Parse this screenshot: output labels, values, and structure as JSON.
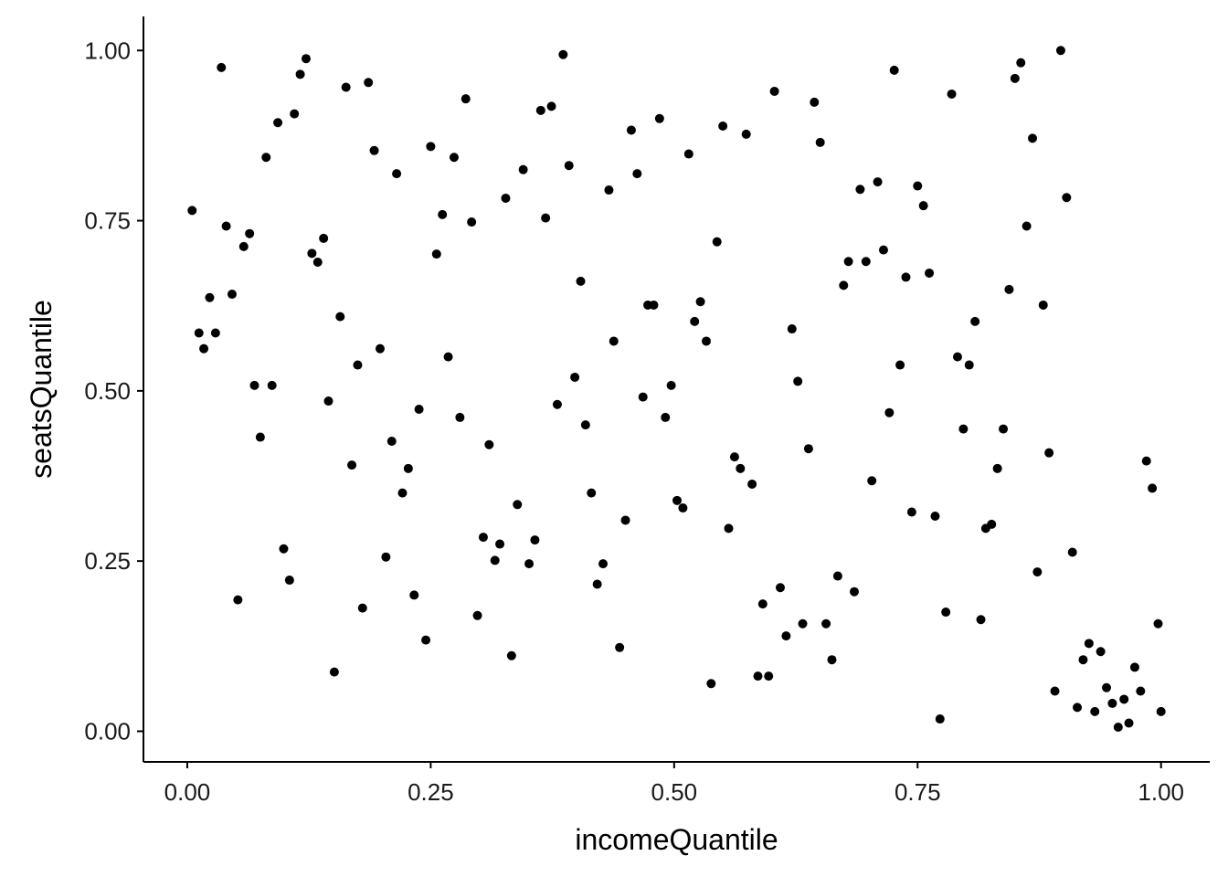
{
  "chart_data": {
    "type": "scatter",
    "title": "",
    "xlabel": "incomeQuantile",
    "ylabel": "seatsQuantile",
    "xlim": [
      -0.045,
      1.05
    ],
    "ylim": [
      -0.045,
      1.05
    ],
    "x_ticks": [
      0,
      0.25,
      0.5,
      0.75,
      1
    ],
    "x_tick_labels": [
      "0.00",
      "0.25",
      "0.50",
      "0.75",
      "1.00"
    ],
    "y_ticks": [
      0,
      0.25,
      0.5,
      0.75,
      1
    ],
    "y_tick_labels": [
      "0.00",
      "0.25",
      "0.50",
      "0.75",
      "1.00"
    ],
    "grid": false,
    "legend": "none",
    "point_color": "#000000",
    "points": [
      [
        0.005,
        0.765
      ],
      [
        0.012,
        0.585
      ],
      [
        0.017,
        0.562
      ],
      [
        0.023,
        0.637
      ],
      [
        0.029,
        0.585
      ],
      [
        0.035,
        0.975
      ],
      [
        0.04,
        0.742
      ],
      [
        0.046,
        0.642
      ],
      [
        0.052,
        0.193
      ],
      [
        0.058,
        0.712
      ],
      [
        0.064,
        0.731
      ],
      [
        0.069,
        0.508
      ],
      [
        0.075,
        0.432
      ],
      [
        0.081,
        0.843
      ],
      [
        0.087,
        0.508
      ],
      [
        0.093,
        0.894
      ],
      [
        0.099,
        0.268
      ],
      [
        0.105,
        0.222
      ],
      [
        0.11,
        0.907
      ],
      [
        0.116,
        0.965
      ],
      [
        0.122,
        0.988
      ],
      [
        0.128,
        0.702
      ],
      [
        0.134,
        0.689
      ],
      [
        0.14,
        0.724
      ],
      [
        0.145,
        0.485
      ],
      [
        0.151,
        0.087
      ],
      [
        0.157,
        0.609
      ],
      [
        0.163,
        0.946
      ],
      [
        0.169,
        0.391
      ],
      [
        0.175,
        0.538
      ],
      [
        0.18,
        0.181
      ],
      [
        0.186,
        0.953
      ],
      [
        0.192,
        0.853
      ],
      [
        0.198,
        0.562
      ],
      [
        0.204,
        0.256
      ],
      [
        0.21,
        0.426
      ],
      [
        0.215,
        0.819
      ],
      [
        0.221,
        0.35
      ],
      [
        0.227,
        0.386
      ],
      [
        0.233,
        0.2
      ],
      [
        0.238,
        0.473
      ],
      [
        0.245,
        0.134
      ],
      [
        0.25,
        0.859
      ],
      [
        0.256,
        0.701
      ],
      [
        0.262,
        0.759
      ],
      [
        0.268,
        0.55
      ],
      [
        0.274,
        0.843
      ],
      [
        0.28,
        0.461
      ],
      [
        0.286,
        0.929
      ],
      [
        0.292,
        0.748
      ],
      [
        0.298,
        0.17
      ],
      [
        0.304,
        0.285
      ],
      [
        0.31,
        0.421
      ],
      [
        0.316,
        0.251
      ],
      [
        0.321,
        0.275
      ],
      [
        0.327,
        0.783
      ],
      [
        0.333,
        0.111
      ],
      [
        0.339,
        0.333
      ],
      [
        0.345,
        0.825
      ],
      [
        0.351,
        0.246
      ],
      [
        0.357,
        0.281
      ],
      [
        0.363,
        0.912
      ],
      [
        0.368,
        0.754
      ],
      [
        0.374,
        0.918
      ],
      [
        0.38,
        0.48
      ],
      [
        0.386,
        0.994
      ],
      [
        0.392,
        0.831
      ],
      [
        0.398,
        0.52
      ],
      [
        0.404,
        0.661
      ],
      [
        0.409,
        0.45
      ],
      [
        0.415,
        0.35
      ],
      [
        0.421,
        0.216
      ],
      [
        0.427,
        0.246
      ],
      [
        0.433,
        0.795
      ],
      [
        0.438,
        0.573
      ],
      [
        0.444,
        0.123
      ],
      [
        0.45,
        0.31
      ],
      [
        0.456,
        0.883
      ],
      [
        0.462,
        0.819
      ],
      [
        0.468,
        0.491
      ],
      [
        0.473,
        0.626
      ],
      [
        0.479,
        0.626
      ],
      [
        0.485,
        0.9
      ],
      [
        0.491,
        0.461
      ],
      [
        0.497,
        0.508
      ],
      [
        0.503,
        0.339
      ],
      [
        0.509,
        0.328
      ],
      [
        0.515,
        0.848
      ],
      [
        0.521,
        0.602
      ],
      [
        0.527,
        0.631
      ],
      [
        0.533,
        0.573
      ],
      [
        0.538,
        0.07
      ],
      [
        0.544,
        0.719
      ],
      [
        0.55,
        0.889
      ],
      [
        0.556,
        0.298
      ],
      [
        0.562,
        0.403
      ],
      [
        0.568,
        0.386
      ],
      [
        0.574,
        0.877
      ],
      [
        0.58,
        0.363
      ],
      [
        0.586,
        0.081
      ],
      [
        0.591,
        0.187
      ],
      [
        0.597,
        0.081
      ],
      [
        0.603,
        0.94
      ],
      [
        0.609,
        0.211
      ],
      [
        0.615,
        0.14
      ],
      [
        0.621,
        0.591
      ],
      [
        0.627,
        0.514
      ],
      [
        0.632,
        0.158
      ],
      [
        0.638,
        0.415
      ],
      [
        0.644,
        0.924
      ],
      [
        0.65,
        0.865
      ],
      [
        0.656,
        0.158
      ],
      [
        0.662,
        0.105
      ],
      [
        0.668,
        0.228
      ],
      [
        0.674,
        0.655
      ],
      [
        0.679,
        0.69
      ],
      [
        0.685,
        0.205
      ],
      [
        0.691,
        0.796
      ],
      [
        0.697,
        0.69
      ],
      [
        0.703,
        0.368
      ],
      [
        0.709,
        0.807
      ],
      [
        0.715,
        0.707
      ],
      [
        0.721,
        0.468
      ],
      [
        0.726,
        0.971
      ],
      [
        0.732,
        0.538
      ],
      [
        0.738,
        0.667
      ],
      [
        0.744,
        0.322
      ],
      [
        0.75,
        0.801
      ],
      [
        0.756,
        0.772
      ],
      [
        0.762,
        0.673
      ],
      [
        0.768,
        0.316
      ],
      [
        0.773,
        0.018
      ],
      [
        0.779,
        0.175
      ],
      [
        0.785,
        0.936
      ],
      [
        0.791,
        0.55
      ],
      [
        0.797,
        0.444
      ],
      [
        0.803,
        0.538
      ],
      [
        0.809,
        0.602
      ],
      [
        0.815,
        0.164
      ],
      [
        0.82,
        0.298
      ],
      [
        0.826,
        0.304
      ],
      [
        0.832,
        0.386
      ],
      [
        0.838,
        0.444
      ],
      [
        0.844,
        0.649
      ],
      [
        0.85,
        0.959
      ],
      [
        0.856,
        0.982
      ],
      [
        0.862,
        0.742
      ],
      [
        0.868,
        0.871
      ],
      [
        0.873,
        0.234
      ],
      [
        0.879,
        0.626
      ],
      [
        0.885,
        0.409
      ],
      [
        0.891,
        0.059
      ],
      [
        0.897,
        1.0
      ],
      [
        0.903,
        0.784
      ],
      [
        0.909,
        0.263
      ],
      [
        0.914,
        0.035
      ],
      [
        0.92,
        0.105
      ],
      [
        0.926,
        0.129
      ],
      [
        0.932,
        0.029
      ],
      [
        0.938,
        0.117
      ],
      [
        0.944,
        0.064
      ],
      [
        0.95,
        0.041
      ],
      [
        0.956,
        0.006
      ],
      [
        0.962,
        0.047
      ],
      [
        0.967,
        0.012
      ],
      [
        0.973,
        0.094
      ],
      [
        0.979,
        0.059
      ],
      [
        0.985,
        0.397
      ],
      [
        0.991,
        0.357
      ],
      [
        0.997,
        0.158
      ],
      [
        1.0,
        0.029
      ]
    ]
  }
}
